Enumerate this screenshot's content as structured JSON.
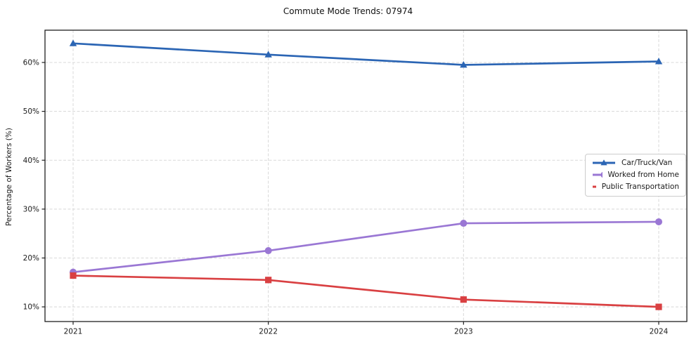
{
  "title": "Commute Mode Trends: 07974",
  "axes": {
    "ylabel": "Percentage of Workers (%)",
    "x_tick_labels": [
      "2021",
      "2022",
      "2023",
      "2024"
    ],
    "y_tick_labels": [
      "10%",
      "20%",
      "30%",
      "40%",
      "50%",
      "60%"
    ]
  },
  "colors": {
    "grid": "#d8d8d8",
    "spine": "#1f1f1f",
    "tick_text": "#1a1a1a"
  },
  "chart_data": {
    "type": "line",
    "title": "Commute Mode Trends: 07974",
    "xlabel": "",
    "ylabel": "Percentage of Workers (%)",
    "x": [
      2021,
      2022,
      2023,
      2024
    ],
    "y_ticks": [
      10,
      20,
      30,
      40,
      50,
      60
    ],
    "ylim": [
      7.0,
      66.6
    ],
    "grid": true,
    "grid_style": "dashed",
    "legend_position": "center-right",
    "series": [
      {
        "name": "Car/Truck/Van",
        "color": "#2b65b4",
        "marker": "triangle",
        "values": [
          63.9,
          61.6,
          59.5,
          60.2
        ]
      },
      {
        "name": "Worked from Home",
        "color": "#9a77d4",
        "marker": "circle",
        "values": [
          17.1,
          21.5,
          27.1,
          27.4
        ]
      },
      {
        "name": "Public Transportation",
        "color": "#d94042",
        "marker": "square",
        "values": [
          16.4,
          15.5,
          11.5,
          10.0
        ]
      }
    ]
  }
}
